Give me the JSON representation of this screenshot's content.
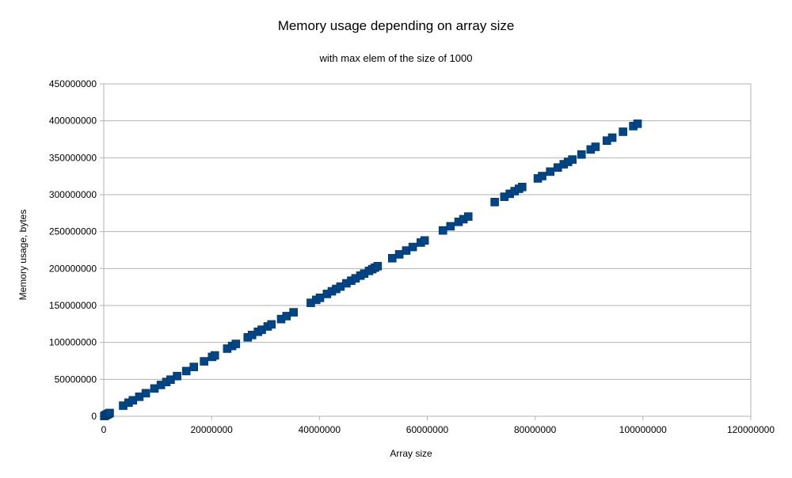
{
  "chart_data": {
    "type": "scatter",
    "title": "Memory usage depending on array size",
    "subtitle": "with max elem of the size of 1000",
    "xlabel": "Array size",
    "ylabel": "Memory usage, bytes",
    "xlim": [
      0,
      120000000
    ],
    "ylim": [
      0,
      450000000
    ],
    "x_ticks": [
      "0",
      "20000000",
      "40000000",
      "60000000",
      "80000000",
      "100000000",
      "120000000"
    ],
    "y_ticks": [
      "0",
      "50000000",
      "100000000",
      "150000000",
      "200000000",
      "250000000",
      "300000000",
      "350000000",
      "400000000",
      "450000000"
    ],
    "grid": "horizontal",
    "legend": "none",
    "marker": "square",
    "series": [
      {
        "color": "#004586",
        "points": [
          [
            100000,
            400000
          ],
          [
            300000,
            1200000
          ],
          [
            500000,
            2000000
          ],
          [
            700000,
            2800000
          ],
          [
            900000,
            3600000
          ],
          [
            1100000,
            4400000
          ],
          [
            3600000,
            14400000
          ],
          [
            4600000,
            18400000
          ],
          [
            5400000,
            21600000
          ],
          [
            6600000,
            26400000
          ],
          [
            7800000,
            31200000
          ],
          [
            9400000,
            37600000
          ],
          [
            10600000,
            42400000
          ],
          [
            11600000,
            46400000
          ],
          [
            12400000,
            49600000
          ],
          [
            13600000,
            54400000
          ],
          [
            15300000,
            61200000
          ],
          [
            16700000,
            66800000
          ],
          [
            18600000,
            74400000
          ],
          [
            20100000,
            80400000
          ],
          [
            20600000,
            82400000
          ],
          [
            22900000,
            91600000
          ],
          [
            23800000,
            95200000
          ],
          [
            24500000,
            98000000
          ],
          [
            26700000,
            106800000
          ],
          [
            27500000,
            110000000
          ],
          [
            28600000,
            114400000
          ],
          [
            29300000,
            117200000
          ],
          [
            30400000,
            121600000
          ],
          [
            31100000,
            124400000
          ],
          [
            32900000,
            131600000
          ],
          [
            33900000,
            135600000
          ],
          [
            35200000,
            140800000
          ],
          [
            38400000,
            153600000
          ],
          [
            39400000,
            157600000
          ],
          [
            40100000,
            160400000
          ],
          [
            41400000,
            165600000
          ],
          [
            42300000,
            169200000
          ],
          [
            43100000,
            172400000
          ],
          [
            43900000,
            175600000
          ],
          [
            45000000,
            180000000
          ],
          [
            45900000,
            183600000
          ],
          [
            46700000,
            186800000
          ],
          [
            47600000,
            190400000
          ],
          [
            48300000,
            193200000
          ],
          [
            49200000,
            196800000
          ],
          [
            49800000,
            199200000
          ],
          [
            50300000,
            201200000
          ],
          [
            50800000,
            203200000
          ],
          [
            53500000,
            214000000
          ],
          [
            54800000,
            219200000
          ],
          [
            56100000,
            224400000
          ],
          [
            57300000,
            229200000
          ],
          [
            58800000,
            235200000
          ],
          [
            59500000,
            238000000
          ],
          [
            62900000,
            251600000
          ],
          [
            64300000,
            257200000
          ],
          [
            65800000,
            263200000
          ],
          [
            66700000,
            266800000
          ],
          [
            67600000,
            270400000
          ],
          [
            72500000,
            290000000
          ],
          [
            74300000,
            297200000
          ],
          [
            75300000,
            301200000
          ],
          [
            76200000,
            304800000
          ],
          [
            77000000,
            308000000
          ],
          [
            77600000,
            310400000
          ],
          [
            80500000,
            322000000
          ],
          [
            81300000,
            325200000
          ],
          [
            82800000,
            331200000
          ],
          [
            84200000,
            336800000
          ],
          [
            85300000,
            341200000
          ],
          [
            86100000,
            344400000
          ],
          [
            86900000,
            347600000
          ],
          [
            88600000,
            354400000
          ],
          [
            90300000,
            361200000
          ],
          [
            91200000,
            364800000
          ],
          [
            93300000,
            373200000
          ],
          [
            94300000,
            377200000
          ],
          [
            96300000,
            385200000
          ],
          [
            98200000,
            392800000
          ],
          [
            99000000,
            396000000
          ]
        ]
      }
    ]
  }
}
